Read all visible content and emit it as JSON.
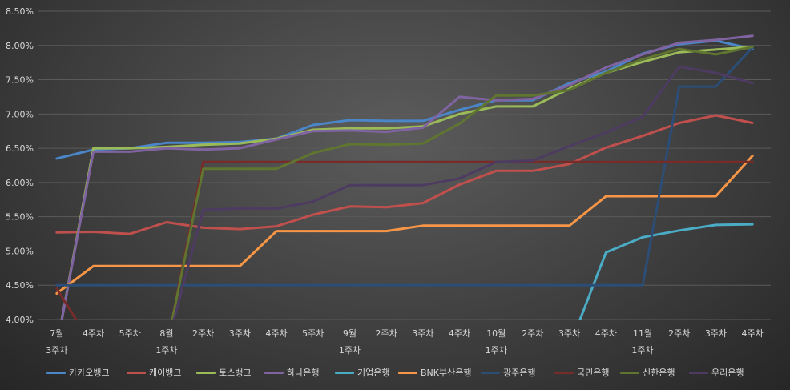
{
  "chart_data": {
    "type": "line",
    "title": "",
    "xlabel": "",
    "ylabel": "",
    "ylim": [
      4.0,
      8.5
    ],
    "y_ticks": [
      "4.00%",
      "4.50%",
      "5.00%",
      "5.50%",
      "6.00%",
      "6.50%",
      "7.00%",
      "7.50%",
      "8.00%",
      "8.50%"
    ],
    "categories": [
      "7월 3주차",
      "4주차",
      "5주차",
      "8월 1주차",
      "2주차",
      "3주차",
      "4주차",
      "5주차",
      "9월 1주차",
      "2주차",
      "3주차",
      "4주차",
      "10월 1주차",
      "2주차",
      "3주차",
      "4주차",
      "11월 1주차",
      "2주차",
      "3주차",
      "4주차"
    ],
    "x_tick_lines": [
      [
        "7월",
        "3주차"
      ],
      [
        "4주차"
      ],
      [
        "5주차"
      ],
      [
        "8월",
        "1주차"
      ],
      [
        "2주차"
      ],
      [
        "3주차"
      ],
      [
        "4주차"
      ],
      [
        "5주차"
      ],
      [
        "9월",
        "1주차"
      ],
      [
        "2주차"
      ],
      [
        "3주차"
      ],
      [
        "4주차"
      ],
      [
        "10월",
        "1주차"
      ],
      [
        "2주차"
      ],
      [
        "3주차"
      ],
      [
        "4주차"
      ],
      [
        "11월",
        "1주차"
      ],
      [
        "2주차"
      ],
      [
        "3주차"
      ],
      [
        "4주차"
      ]
    ],
    "grid": true,
    "legend_position": "bottom",
    "series": [
      {
        "name": "카카오뱅크",
        "color": "#4a86c8",
        "values": [
          6.35,
          6.48,
          6.5,
          6.58,
          6.58,
          6.59,
          6.64,
          6.84,
          6.91,
          6.9,
          6.9,
          7.06,
          7.2,
          7.2,
          7.45,
          7.62,
          7.88,
          8.02,
          8.07,
          7.95
        ]
      },
      {
        "name": "케이뱅크",
        "color": "#c0504d",
        "values": [
          5.27,
          5.28,
          5.25,
          5.42,
          5.34,
          5.32,
          5.36,
          5.53,
          5.65,
          5.64,
          5.7,
          5.97,
          6.17,
          6.17,
          6.27,
          6.51,
          6.68,
          6.87,
          6.98,
          6.87
        ]
      },
      {
        "name": "토스뱅크",
        "color": "#9bbb59",
        "values": [
          null,
          6.5,
          6.5,
          6.52,
          6.55,
          6.57,
          6.64,
          6.77,
          6.79,
          6.79,
          6.82,
          7.0,
          7.11,
          7.11,
          7.37,
          7.6,
          7.76,
          7.9,
          7.94,
          7.98
        ]
      },
      {
        "name": "하나은행",
        "color": "#8064a2",
        "values": [
          null,
          6.45,
          6.45,
          6.5,
          6.48,
          6.5,
          6.63,
          6.75,
          6.76,
          6.74,
          6.8,
          7.25,
          7.2,
          7.22,
          7.42,
          7.68,
          7.87,
          8.04,
          8.08,
          8.14
        ]
      },
      {
        "name": "기업은행",
        "color": "#4bacc6",
        "values": [
          null,
          null,
          null,
          null,
          null,
          null,
          null,
          null,
          null,
          null,
          null,
          null,
          null,
          null,
          null,
          4.98,
          5.2,
          5.3,
          5.38,
          5.39
        ]
      },
      {
        "name": "BNK부산은행",
        "color": "#f79646",
        "values": [
          4.38,
          4.78,
          4.78,
          4.78,
          4.78,
          4.78,
          5.29,
          5.29,
          5.29,
          5.29,
          5.37,
          5.37,
          5.37,
          5.37,
          5.37,
          5.8,
          5.8,
          5.8,
          5.8,
          6.39
        ]
      },
      {
        "name": "광주은행",
        "color": "#2c4d75",
        "values": [
          4.5,
          4.5,
          4.5,
          4.5,
          4.5,
          4.5,
          4.5,
          4.5,
          4.5,
          4.5,
          4.5,
          4.5,
          4.5,
          4.5,
          4.5,
          4.5,
          4.5,
          7.4,
          7.4,
          7.97
        ]
      },
      {
        "name": "국민은행",
        "color": "#772c2a",
        "values": [
          4.45,
          null,
          null,
          null,
          6.3,
          6.3,
          6.3,
          6.3,
          6.3,
          6.3,
          6.3,
          6.3,
          6.3,
          6.3,
          6.3,
          6.3,
          6.3,
          6.3,
          6.3,
          6.3
        ]
      },
      {
        "name": "신한은행",
        "color": "#5f7530",
        "values": [
          null,
          null,
          null,
          null,
          6.2,
          6.2,
          6.2,
          6.43,
          6.56,
          6.55,
          6.57,
          6.86,
          7.27,
          7.27,
          7.35,
          7.6,
          7.8,
          7.95,
          7.87,
          7.98
        ]
      },
      {
        "name": "우리은행",
        "color": "#4d3b62",
        "values": [
          null,
          null,
          null,
          null,
          5.6,
          5.62,
          5.62,
          5.72,
          5.96,
          5.96,
          5.96,
          6.06,
          6.3,
          6.32,
          6.53,
          6.73,
          6.96,
          7.69,
          7.6,
          7.45
        ]
      }
    ]
  }
}
